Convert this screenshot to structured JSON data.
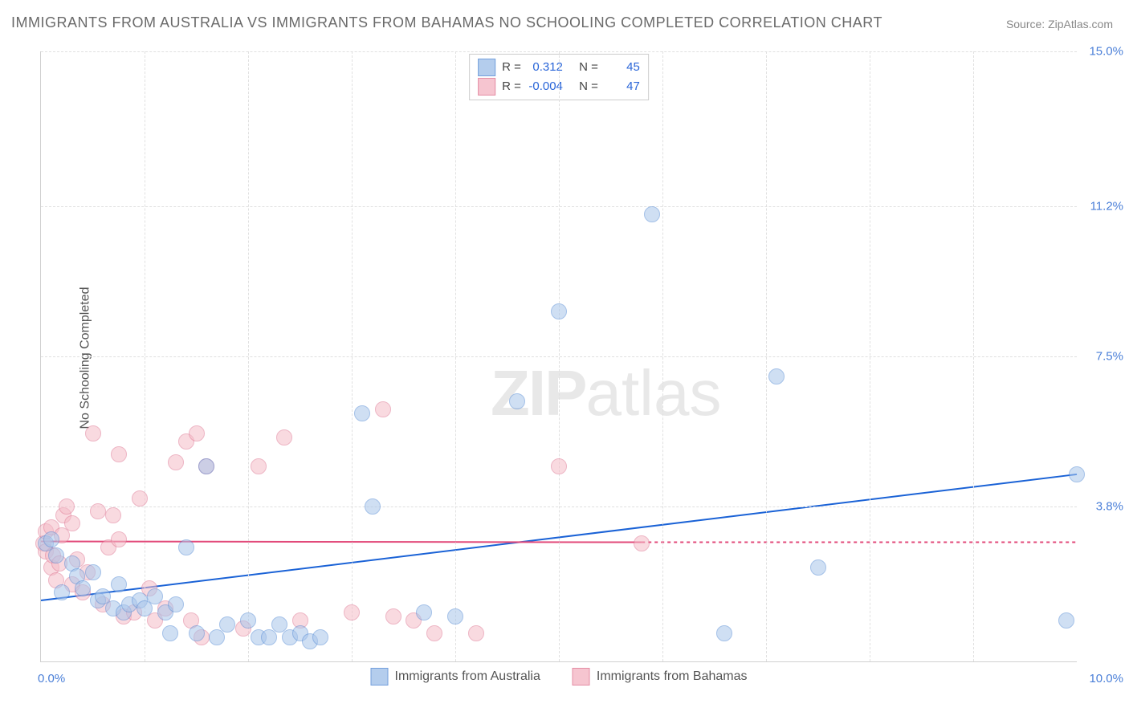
{
  "title": "IMMIGRANTS FROM AUSTRALIA VS IMMIGRANTS FROM BAHAMAS NO SCHOOLING COMPLETED CORRELATION CHART",
  "source": "Source: ZipAtlas.com",
  "ylabel": "No Schooling Completed",
  "watermark_bold": "ZIP",
  "watermark_light": "atlas",
  "chart": {
    "xlim": [
      0.0,
      10.0
    ],
    "ylim": [
      0.0,
      15.0
    ],
    "yticks": [
      {
        "v": 3.8,
        "label": "3.8%"
      },
      {
        "v": 7.5,
        "label": "7.5%"
      },
      {
        "v": 11.2,
        "label": "11.2%"
      },
      {
        "v": 15.0,
        "label": "15.0%"
      }
    ],
    "xticks": [
      {
        "v": 0.0,
        "label": "0.0%"
      },
      {
        "v": 10.0,
        "label": "10.0%"
      }
    ],
    "vgrid": [
      1,
      2,
      3,
      4,
      5,
      6,
      7,
      8,
      9
    ],
    "background_color": "#ffffff",
    "grid_color": "#e0e0e0",
    "axis_color": "#d0d0d0"
  },
  "series": {
    "australia": {
      "label": "Immigrants from Australia",
      "fill_color": "#a8c5ea",
      "stroke_color": "#5b8fd6",
      "fill_opacity": 0.55,
      "point_radius": 9,
      "trend": {
        "x1": 0.0,
        "y1": 1.5,
        "x2": 10.0,
        "y2": 4.6,
        "color": "#1a62d6",
        "width": 2,
        "dash_from_x": 10.0
      },
      "r_value": "0.312",
      "n_value": "45",
      "points": [
        [
          0.05,
          2.9
        ],
        [
          0.1,
          3.0
        ],
        [
          0.15,
          2.6
        ],
        [
          0.2,
          1.7
        ],
        [
          0.3,
          2.4
        ],
        [
          0.35,
          2.1
        ],
        [
          0.4,
          1.8
        ],
        [
          0.5,
          2.2
        ],
        [
          0.55,
          1.5
        ],
        [
          0.6,
          1.6
        ],
        [
          0.7,
          1.3
        ],
        [
          0.75,
          1.9
        ],
        [
          0.8,
          1.2
        ],
        [
          0.85,
          1.4
        ],
        [
          0.95,
          1.5
        ],
        [
          1.0,
          1.3
        ],
        [
          1.1,
          1.6
        ],
        [
          1.2,
          1.2
        ],
        [
          1.25,
          0.7
        ],
        [
          1.3,
          1.4
        ],
        [
          1.4,
          2.8
        ],
        [
          1.5,
          0.7
        ],
        [
          1.6,
          4.8
        ],
        [
          1.7,
          0.6
        ],
        [
          1.8,
          0.9
        ],
        [
          2.0,
          1.0
        ],
        [
          2.1,
          0.6
        ],
        [
          2.2,
          0.6
        ],
        [
          2.3,
          0.9
        ],
        [
          2.4,
          0.6
        ],
        [
          2.5,
          0.7
        ],
        [
          2.6,
          0.5
        ],
        [
          2.7,
          0.6
        ],
        [
          3.1,
          6.1
        ],
        [
          3.2,
          3.8
        ],
        [
          3.7,
          1.2
        ],
        [
          4.0,
          1.1
        ],
        [
          4.6,
          6.4
        ],
        [
          5.0,
          8.6
        ],
        [
          5.9,
          11.0
        ],
        [
          6.6,
          0.7
        ],
        [
          7.1,
          7.0
        ],
        [
          7.5,
          2.3
        ],
        [
          9.9,
          1.0
        ],
        [
          10.0,
          4.6
        ]
      ]
    },
    "bahamas": {
      "label": "Immigrants from Bahamas",
      "fill_color": "#f5bcc8",
      "stroke_color": "#e07a95",
      "fill_opacity": 0.55,
      "point_radius": 9,
      "trend": {
        "x1": 0.0,
        "y1": 2.95,
        "x2": 5.8,
        "y2": 2.93,
        "dash_to_x": 10.0,
        "color": "#e24a7a",
        "width": 2
      },
      "r_value": "-0.004",
      "n_value": "47",
      "points": [
        [
          0.02,
          2.9
        ],
        [
          0.05,
          3.2
        ],
        [
          0.05,
          2.7
        ],
        [
          0.1,
          2.3
        ],
        [
          0.1,
          3.3
        ],
        [
          0.12,
          2.6
        ],
        [
          0.15,
          2.0
        ],
        [
          0.18,
          2.4
        ],
        [
          0.2,
          3.1
        ],
        [
          0.22,
          3.6
        ],
        [
          0.25,
          3.8
        ],
        [
          0.3,
          3.4
        ],
        [
          0.3,
          1.9
        ],
        [
          0.35,
          2.5
        ],
        [
          0.4,
          1.7
        ],
        [
          0.45,
          2.2
        ],
        [
          0.5,
          5.6
        ],
        [
          0.55,
          3.7
        ],
        [
          0.6,
          1.4
        ],
        [
          0.65,
          2.8
        ],
        [
          0.7,
          3.6
        ],
        [
          0.75,
          5.1
        ],
        [
          0.75,
          3.0
        ],
        [
          0.8,
          1.1
        ],
        [
          0.9,
          1.2
        ],
        [
          0.95,
          4.0
        ],
        [
          1.05,
          1.8
        ],
        [
          1.1,
          1.0
        ],
        [
          1.2,
          1.3
        ],
        [
          1.3,
          4.9
        ],
        [
          1.4,
          5.4
        ],
        [
          1.45,
          1.0
        ],
        [
          1.5,
          5.6
        ],
        [
          1.55,
          0.6
        ],
        [
          1.6,
          4.8
        ],
        [
          1.95,
          0.8
        ],
        [
          2.1,
          4.8
        ],
        [
          2.35,
          5.5
        ],
        [
          2.5,
          1.0
        ],
        [
          3.0,
          1.2
        ],
        [
          3.3,
          6.2
        ],
        [
          3.4,
          1.1
        ],
        [
          3.6,
          1.0
        ],
        [
          3.8,
          0.7
        ],
        [
          4.2,
          0.7
        ],
        [
          5.0,
          4.8
        ],
        [
          5.8,
          2.9
        ]
      ]
    }
  },
  "legend_labels": {
    "r": "R =",
    "n": "N ="
  }
}
